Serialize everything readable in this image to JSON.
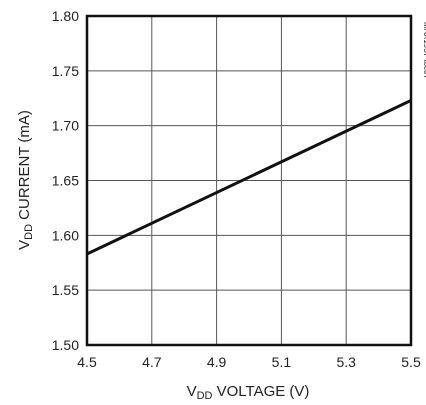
{
  "chart_data": {
    "type": "line",
    "ylabel_main": "V",
    "ylabel_sub": "DD",
    "ylabel_rest": " CURRENT (mA)",
    "xlabel_sub": "DD",
    "xlabel_rest": " VOLTAGE (V)",
    "xlabel_main": "V",
    "figure_id": "MAX1937 toc07",
    "xlim": [
      4.5,
      5.5
    ],
    "ylim": [
      1.5,
      1.8
    ],
    "x_ticks": [
      "4.5",
      "4.7",
      "4.9",
      "5.1",
      "5.3",
      "5.5"
    ],
    "y_ticks": [
      "1.80",
      "1.75",
      "1.70",
      "1.65",
      "1.60",
      "1.55",
      "1.50"
    ],
    "grid": true,
    "series": [
      {
        "x": [
          4.5,
          5.5
        ],
        "y": [
          1.583,
          1.723
        ]
      }
    ]
  }
}
